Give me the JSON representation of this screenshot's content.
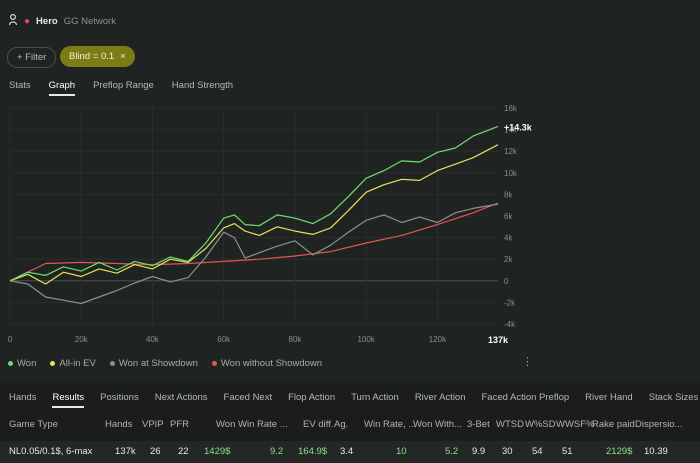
{
  "header": {
    "player": "Hero",
    "network": "GG Network"
  },
  "filters": {
    "add_label": "+ Filter",
    "blind_chip": "Blind = 0.1",
    "remove_icon": "×"
  },
  "top_tabs": [
    "Stats",
    "Graph",
    "Preflop Range",
    "Hand Strength"
  ],
  "active_top_tab": "Graph",
  "chart_data": {
    "type": "line",
    "x_ticks": [
      "0",
      "20k",
      "40k",
      "60k",
      "80k",
      "100k",
      "120k"
    ],
    "x_end_label": "137k",
    "y_ticks": [
      "16k",
      "14k",
      "12k",
      "10k",
      "8k",
      "6k",
      "4k",
      "2k",
      "0",
      "-2k",
      "-4k"
    ],
    "xlim": [
      0,
      137000
    ],
    "ylim": [
      -4000,
      16000
    ],
    "end_label": "+14.3k",
    "series": [
      {
        "name": "Won",
        "color": "#6ee06a",
        "x": [
          0,
          5000,
          10000,
          15000,
          20000,
          25000,
          30000,
          35000,
          40000,
          45000,
          50000,
          55000,
          60000,
          63000,
          66000,
          70000,
          75000,
          80000,
          85000,
          90000,
          95000,
          100000,
          105000,
          110000,
          115000,
          120000,
          125000,
          130000,
          137000
        ],
        "y": [
          0,
          800,
          500,
          1300,
          900,
          1700,
          1000,
          1800,
          1400,
          2200,
          1800,
          3500,
          5800,
          6100,
          5200,
          5100,
          6100,
          5800,
          5300,
          6200,
          7800,
          9500,
          10200,
          11100,
          11000,
          11900,
          12300,
          13400,
          14300
        ]
      },
      {
        "name": "All-in EV",
        "color": "#e6e45a",
        "x": [
          0,
          5000,
          10000,
          15000,
          20000,
          25000,
          30000,
          35000,
          40000,
          45000,
          50000,
          55000,
          60000,
          63000,
          66000,
          70000,
          75000,
          80000,
          85000,
          90000,
          95000,
          100000,
          105000,
          110000,
          115000,
          120000,
          125000,
          130000,
          137000
        ],
        "y": [
          0,
          600,
          -300,
          800,
          400,
          1100,
          700,
          1500,
          1100,
          2000,
          1700,
          3000,
          4900,
          5300,
          4600,
          4200,
          5000,
          4600,
          4300,
          4900,
          6500,
          8200,
          8900,
          9400,
          9300,
          10200,
          10800,
          11400,
          12600
        ]
      },
      {
        "name": "Won at Showdown",
        "color": "#8e918f",
        "x": [
          0,
          5000,
          10000,
          15000,
          20000,
          25000,
          30000,
          35000,
          40000,
          45000,
          50000,
          55000,
          60000,
          63000,
          66000,
          70000,
          75000,
          80000,
          85000,
          90000,
          95000,
          100000,
          105000,
          110000,
          115000,
          120000,
          125000,
          130000,
          137000
        ],
        "y": [
          0,
          -300,
          -1500,
          -1800,
          -2100,
          -1500,
          -900,
          -200,
          400,
          -100,
          300,
          2200,
          4500,
          4000,
          2100,
          2600,
          3200,
          3700,
          2400,
          3300,
          4500,
          5600,
          6100,
          5400,
          5900,
          5400,
          6300,
          6700,
          7100
        ]
      },
      {
        "name": "Won without Showdown",
        "color": "#e2584c",
        "x": [
          0,
          10000,
          20000,
          30000,
          40000,
          50000,
          60000,
          70000,
          80000,
          90000,
          100000,
          110000,
          120000,
          130000,
          137000
        ],
        "y": [
          0,
          1600,
          1700,
          1600,
          1500,
          1600,
          1800,
          2000,
          2300,
          2700,
          3500,
          4200,
          5200,
          6300,
          7200
        ]
      }
    ]
  },
  "legend_more_icon": "⋮",
  "bottom_tabs": [
    "Hands",
    "Results",
    "Positions",
    "Next Actions",
    "Faced Next",
    "Flop Action",
    "Turn Action",
    "River Action",
    "Faced Action Preflop",
    "River Hand",
    "Stack Sizes"
  ],
  "active_bottom_tab": "Results",
  "table": {
    "columns": [
      "Game Type",
      "Hands",
      "VPIP",
      "PFR",
      "Won",
      "Win Rate ...",
      "EV diff.",
      "Ag.",
      "Win Rate, ...",
      "Won With...",
      "3-Bet",
      "WTSD",
      "W%SD",
      "WWSF%",
      "Rake paid",
      "Dispersio..."
    ],
    "rows": [
      [
        "NL0.05/0.1$, 6-max",
        "137k",
        "26",
        "22",
        "1429$",
        "9.2",
        "164.9$",
        "3.4",
        "10",
        "5.2",
        "9.9",
        "30",
        "54",
        "51",
        "2129$",
        "10.39"
      ]
    ]
  }
}
